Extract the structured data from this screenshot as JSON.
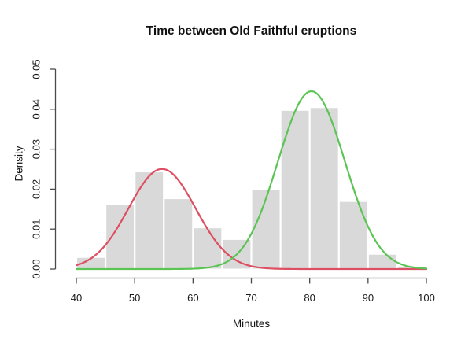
{
  "chart_data": {
    "type": "bar",
    "subtype": "histogram-with-density-curves",
    "title": "Time between Old Faithful eruptions",
    "xlabel": "Minutes",
    "ylabel": "Density",
    "xlim": [
      40,
      100
    ],
    "ylim": [
      0,
      0.05
    ],
    "x_ticks": [
      "40",
      "50",
      "60",
      "70",
      "80",
      "90",
      "100"
    ],
    "y_ticks": [
      "0.00",
      "0.01",
      "0.02",
      "0.03",
      "0.04",
      "0.05"
    ],
    "grid": "off",
    "legend": "none",
    "histogram": {
      "bin_edges": [
        40,
        45,
        50,
        55,
        60,
        65,
        70,
        75,
        80,
        85,
        90,
        95,
        100
      ],
      "densities": [
        0.0029,
        0.0162,
        0.0243,
        0.0176,
        0.0103,
        0.0074,
        0.0199,
        0.0397,
        0.0404,
        0.0169,
        0.0037,
        0.0007
      ],
      "fill_color": "#d9d9d9",
      "separator_color": "#ffffff"
    },
    "curves": [
      {
        "name": "mixture-component-1-red",
        "color": "#dd4f62",
        "mean": 54.7,
        "sd": 5.75,
        "weight": 0.361,
        "peak_density": 0.025
      },
      {
        "name": "mixture-component-2-green",
        "color": "#5cc455",
        "mean": 80.3,
        "sd": 5.73,
        "weight": 0.639,
        "peak_density": 0.0445
      }
    ],
    "axis_color": "#4a4a4a",
    "text_color": "#1a1a1a"
  }
}
